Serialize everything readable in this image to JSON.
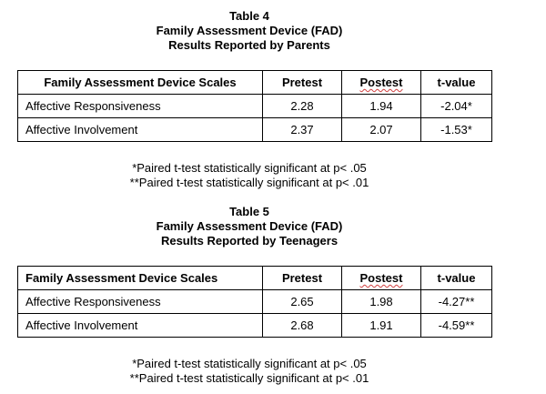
{
  "table4": {
    "title": "Table 4",
    "subtitle1": "Family Assessment Device (FAD)",
    "subtitle2": "Results Reported by Parents",
    "headers": {
      "scale": "Family Assessment Device Scales",
      "pre": "Pretest",
      "post": "Postest",
      "t": "t-value"
    },
    "rows": [
      {
        "scale": "Affective Responsiveness",
        "pre": "2.28",
        "post": "1.94",
        "t": "-2.04*"
      },
      {
        "scale": "Affective Involvement",
        "pre": "2.37",
        "post": "2.07",
        "t": "-1.53*"
      }
    ],
    "note1": "*Paired t-test statistically significant at p< .05",
    "note2": "**Paired t-test statistically significant at p< .01"
  },
  "table5": {
    "title": "Table 5",
    "subtitle1": "Family Assessment Device (FAD)",
    "subtitle2": "Results Reported by Teenagers",
    "headers": {
      "scale": "Family Assessment Device Scales",
      "pre": "Pretest",
      "post": "Postest",
      "t": "t-value"
    },
    "rows": [
      {
        "scale": "Affective Responsiveness",
        "pre": "2.65",
        "post": "1.98",
        "t": "-4.27**"
      },
      {
        "scale": "Affective Involvement",
        "pre": "2.68",
        "post": "1.91",
        "t": "-4.59**"
      }
    ],
    "note1": "*Paired t-test statistically significant at p< .05",
    "note2": "**Paired t-test statistically significant at p< .01"
  }
}
